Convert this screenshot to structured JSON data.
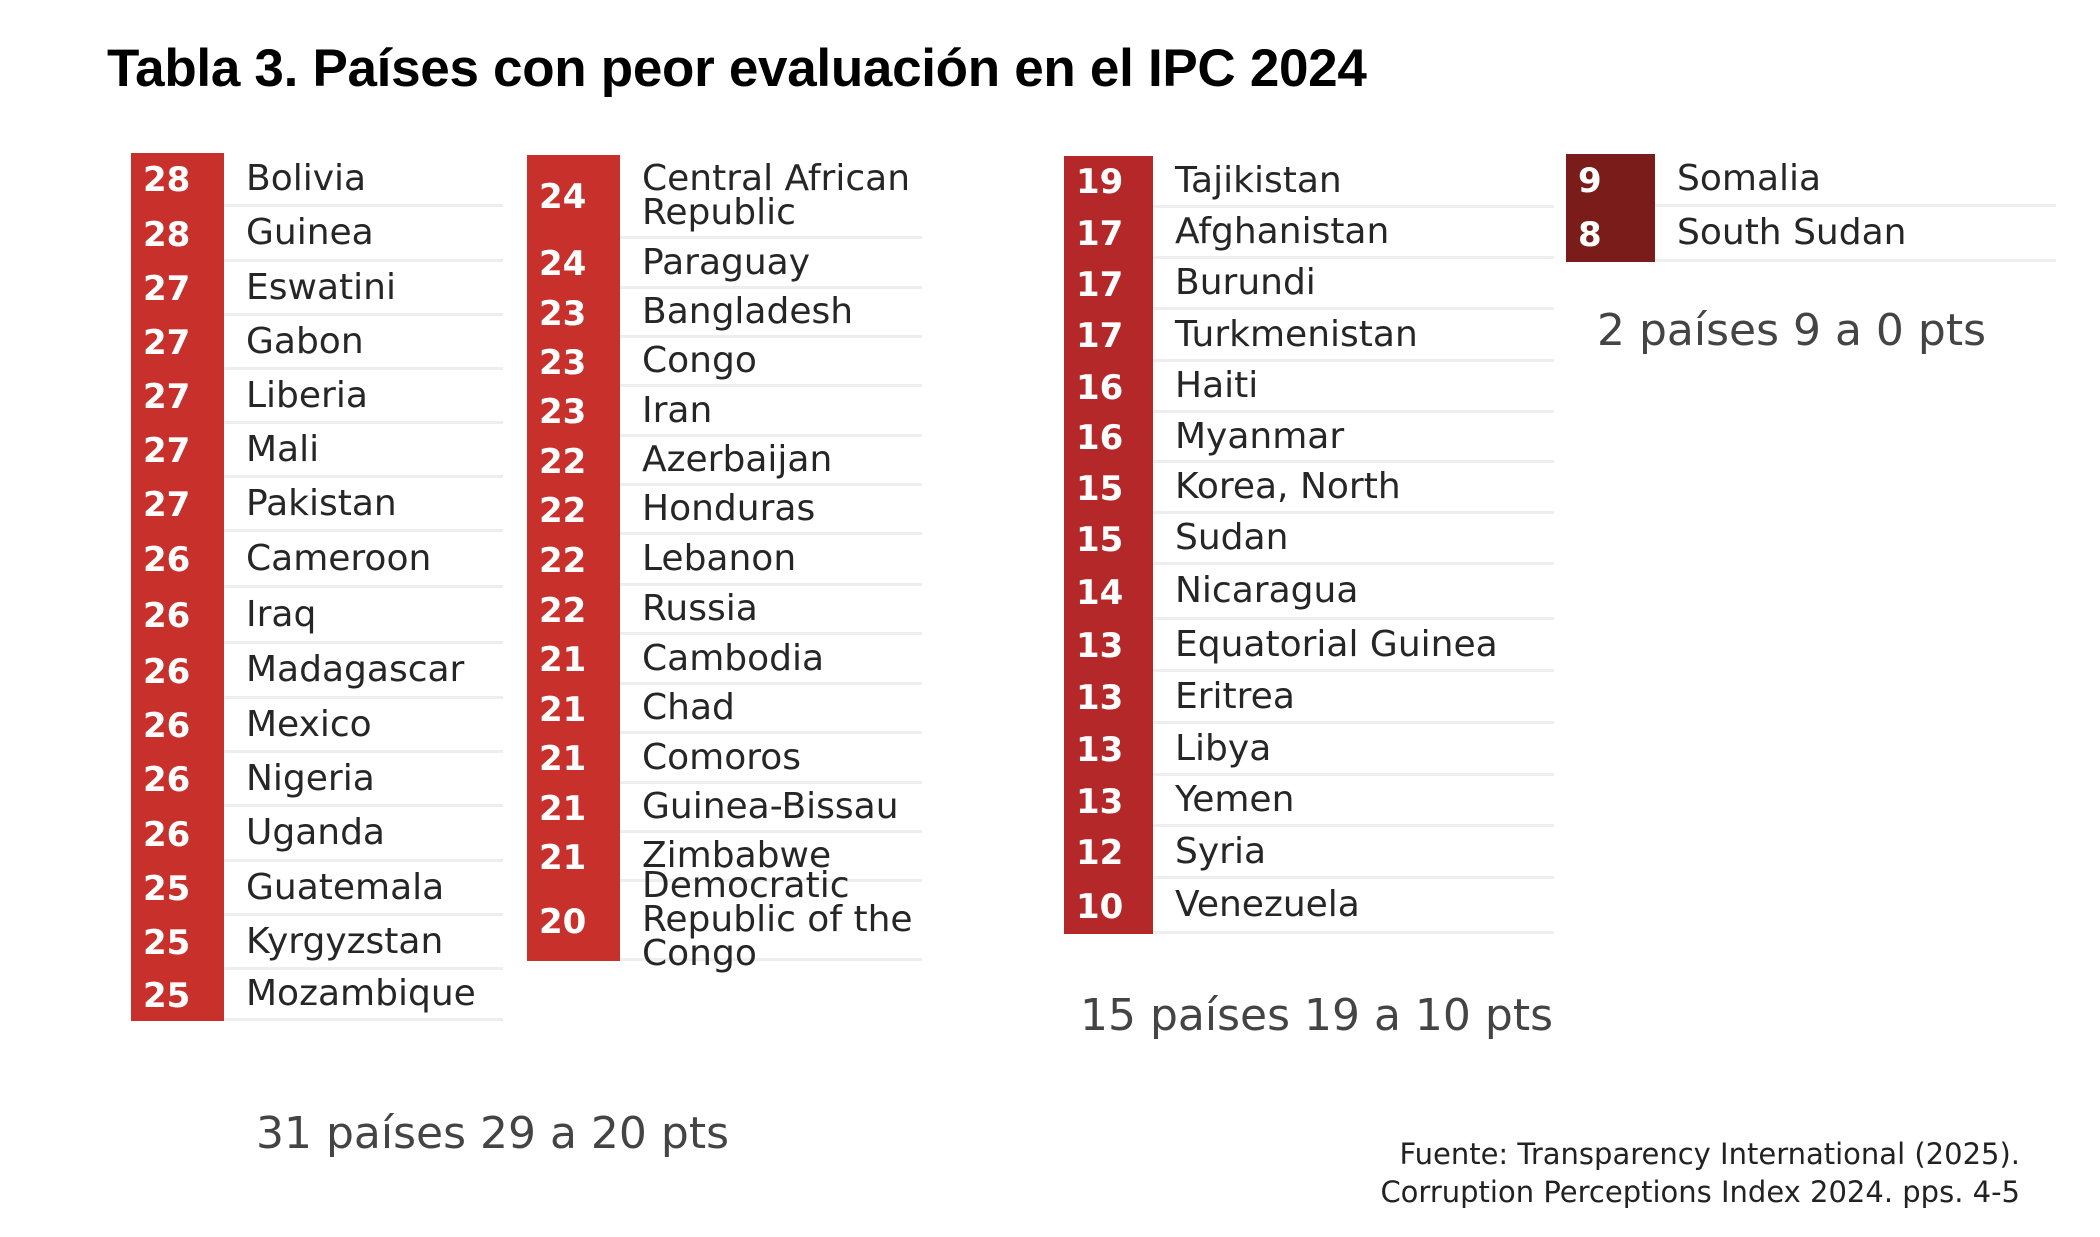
{
  "title": "Tabla 3. Países con peor evaluación en el IPC 2024",
  "colors": {
    "group1": "#c8302c",
    "group2": "#b5282a",
    "group3": "#7a1c1a"
  },
  "groups": [
    {
      "summary": "31 países 29 a 20 pts",
      "columns": [
        [
          {
            "score": "28",
            "country": "Bolivia"
          },
          {
            "score": "28",
            "country": "Guinea"
          },
          {
            "score": "27",
            "country": "Eswatini"
          },
          {
            "score": "27",
            "country": "Gabon"
          },
          {
            "score": "27",
            "country": "Liberia"
          },
          {
            "score": "27",
            "country": "Mali"
          },
          {
            "score": "27",
            "country": "Pakistan"
          },
          {
            "score": "26",
            "country": "Cameroon"
          },
          {
            "score": "26",
            "country": "Iraq"
          },
          {
            "score": "26",
            "country": "Madagascar"
          },
          {
            "score": "26",
            "country": "Mexico"
          },
          {
            "score": "26",
            "country": "Nigeria"
          },
          {
            "score": "26",
            "country": "Uganda"
          },
          {
            "score": "25",
            "country": "Guatemala"
          },
          {
            "score": "25",
            "country": "Kyrgyzstan"
          },
          {
            "score": "25",
            "country": "Mozambique"
          }
        ],
        [
          {
            "score": "24",
            "country": "Central African Republic"
          },
          {
            "score": "24",
            "country": "Paraguay"
          },
          {
            "score": "23",
            "country": "Bangladesh"
          },
          {
            "score": "23",
            "country": "Congo"
          },
          {
            "score": "23",
            "country": "Iran"
          },
          {
            "score": "22",
            "country": "Azerbaijan"
          },
          {
            "score": "22",
            "country": "Honduras"
          },
          {
            "score": "22",
            "country": "Lebanon"
          },
          {
            "score": "22",
            "country": "Russia"
          },
          {
            "score": "21",
            "country": "Cambodia"
          },
          {
            "score": "21",
            "country": "Chad"
          },
          {
            "score": "21",
            "country": "Comoros"
          },
          {
            "score": "21",
            "country": "Guinea-Bissau"
          },
          {
            "score": "21",
            "country": "Zimbabwe"
          },
          {
            "score": "20",
            "country": "Democratic Republic of the Congo"
          }
        ]
      ]
    },
    {
      "summary": "15 países 19 a 10 pts",
      "columns": [
        [
          {
            "score": "19",
            "country": "Tajikistan"
          },
          {
            "score": "17",
            "country": "Afghanistan"
          },
          {
            "score": "17",
            "country": "Burundi"
          },
          {
            "score": "17",
            "country": "Turkmenistan"
          },
          {
            "score": "16",
            "country": "Haiti"
          },
          {
            "score": "16",
            "country": "Myanmar"
          },
          {
            "score": "15",
            "country": "Korea, North"
          },
          {
            "score": "15",
            "country": "Sudan"
          },
          {
            "score": "14",
            "country": "Nicaragua"
          },
          {
            "score": "13",
            "country": "Equatorial Guinea"
          },
          {
            "score": "13",
            "country": "Eritrea"
          },
          {
            "score": "13",
            "country": "Libya"
          },
          {
            "score": "13",
            "country": "Yemen"
          },
          {
            "score": "12",
            "country": "Syria"
          },
          {
            "score": "10",
            "country": "Venezuela"
          }
        ]
      ]
    },
    {
      "summary": "2 países 9 a 0 pts",
      "columns": [
        [
          {
            "score": "9",
            "country": "Somalia"
          },
          {
            "score": "8",
            "country": "South Sudan"
          }
        ]
      ]
    }
  ],
  "source": {
    "line1": "Fuente: Transparency International (2025).",
    "line2": "Corruption Perceptions Index 2024. pps. 4-5"
  }
}
